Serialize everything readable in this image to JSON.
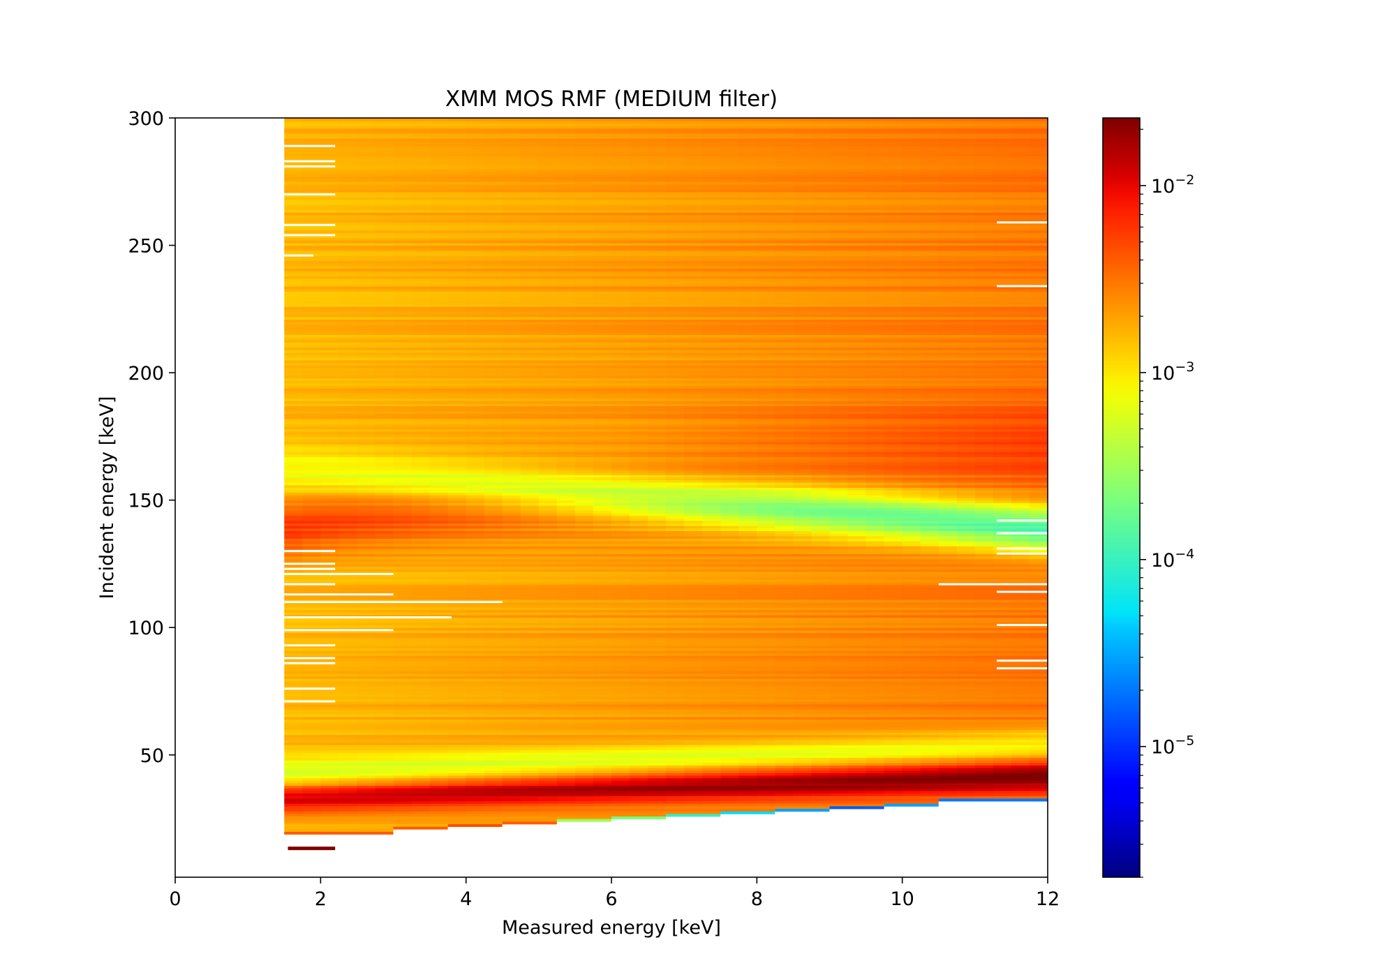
{
  "chart_data": {
    "type": "heatmap",
    "title": "XMM MOS RMF (MEDIUM filter)",
    "xlabel": "Measured energy [keV]",
    "ylabel": "Incident energy [keV]",
    "xlim": [
      0,
      12
    ],
    "ylim": [
      2,
      300
    ],
    "x_ticks": [
      0,
      2,
      4,
      6,
      8,
      10,
      12
    ],
    "x_tick_labels": [
      "0",
      "2",
      "4",
      "6",
      "8",
      "10",
      "12"
    ],
    "y_ticks": [
      50,
      100,
      150,
      200,
      250,
      300
    ],
    "y_tick_labels": [
      "50",
      "100",
      "150",
      "200",
      "250",
      "300"
    ],
    "colormap": "jet",
    "colorscale": "log",
    "color_range": [
      2e-06,
      0.023
    ],
    "colorbar_ticks": [
      1e-05,
      0.0001,
      0.001,
      0.01
    ],
    "colorbar_tick_labels": [
      "10",
      "10",
      "10",
      "10"
    ],
    "colorbar_tick_exponents": [
      "−5",
      "−4",
      "−3",
      "−2"
    ],
    "data_extent": {
      "measured_energy_min": 1.5,
      "measured_energy_max": 12.0,
      "incident_energy_max": 300
    },
    "lower_edge_steps": [
      {
        "x_start": 1.5,
        "x_end": 3.0,
        "y": 15,
        "value": 0.004
      },
      {
        "x_start": 3.0,
        "x_end": 3.75,
        "y": 17,
        "value": 0.004
      },
      {
        "x_start": 3.75,
        "x_end": 4.5,
        "y": 18,
        "value": 0.0045
      },
      {
        "x_start": 4.5,
        "x_end": 5.25,
        "y": 19,
        "value": 0.004
      },
      {
        "x_start": 5.25,
        "x_end": 6.0,
        "y": 20,
        "value": 0.0003
      },
      {
        "x_start": 6.0,
        "x_end": 6.75,
        "y": 21,
        "value": 0.0002
      },
      {
        "x_start": 6.75,
        "x_end": 7.5,
        "y": 22,
        "value": 9e-05
      },
      {
        "x_start": 7.5,
        "x_end": 8.25,
        "y": 23,
        "value": 5e-05
      },
      {
        "x_start": 8.25,
        "x_end": 9.0,
        "y": 24,
        "value": 3e-05
      },
      {
        "x_start": 9.0,
        "x_end": 9.75,
        "y": 25,
        "value": 1.5e-05
      },
      {
        "x_start": 9.75,
        "x_end": 10.5,
        "y": 26,
        "value": 3e-05
      },
      {
        "x_start": 10.5,
        "x_end": 12.0,
        "y": 28,
        "value": 2e-05
      }
    ],
    "colormap_stops": [
      {
        "t": 0.0,
        "color": "#00007f"
      },
      {
        "t": 0.11,
        "color": "#0000ff"
      },
      {
        "t": 0.125,
        "color": "#0000ff"
      },
      {
        "t": 0.34,
        "color": "#00d4ff"
      },
      {
        "t": 0.35,
        "color": "#00e5f7"
      },
      {
        "t": 0.5,
        "color": "#7dff7a"
      },
      {
        "t": 0.64,
        "color": "#f7ff00"
      },
      {
        "t": 0.66,
        "color": "#ffea00"
      },
      {
        "t": 0.89,
        "color": "#ff1300"
      },
      {
        "t": 0.91,
        "color": "#e80000"
      },
      {
        "t": 1.0,
        "color": "#7f0000"
      }
    ]
  }
}
